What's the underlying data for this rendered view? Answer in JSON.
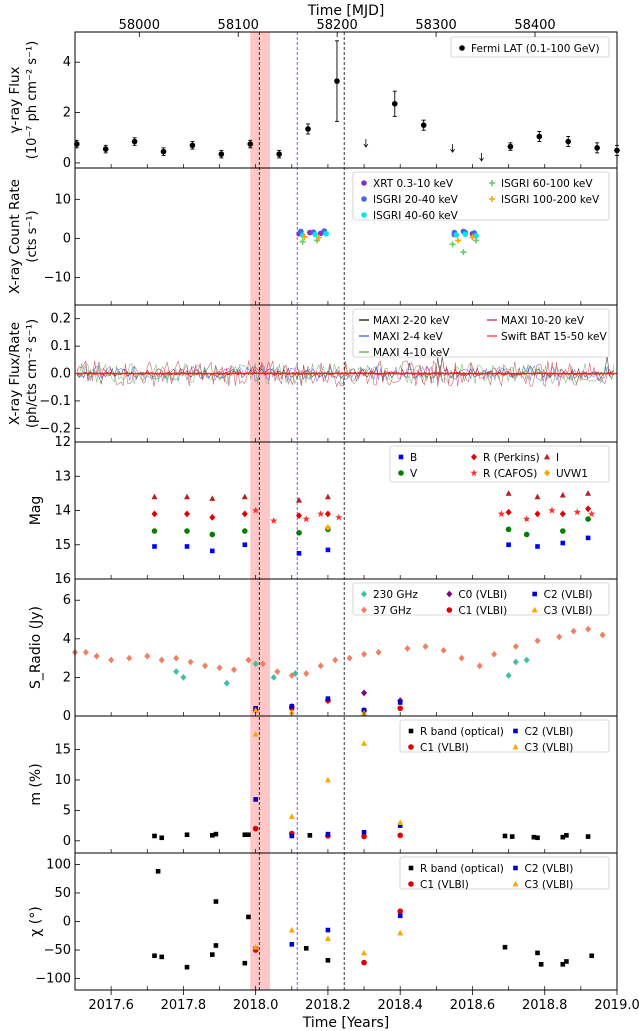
{
  "figure": {
    "top_axis_label": "Time [MJD]",
    "top_ticks": [
      "58000",
      "58100",
      "58200",
      "58300",
      "58400"
    ],
    "bottom_axis_label": "Time [Years]",
    "bottom_ticks": [
      "2017.6",
      "2017.8",
      "2018.0",
      "2018.2",
      "2018.4",
      "2018.6",
      "2018.8",
      "2019.0"
    ],
    "xlim": [
      2017.5,
      2019.0
    ]
  },
  "chart_data": [
    {
      "type": "scatter",
      "title": "gamma-ray flux",
      "ylabel_line1": "γ-ray Flux",
      "ylabel_line2": "(10⁻⁷ ph cm⁻² s⁻¹)",
      "ylim": [
        -0.2,
        5.2
      ],
      "yticks": [
        "0",
        "2",
        "4"
      ],
      "legend": [
        "Fermi LAT (0.1-100 GeV)"
      ],
      "series": [
        {
          "name": "Fermi LAT (0.1-100 GeV)",
          "color": "#000000",
          "x": [
            2017.505,
            2017.585,
            2017.665,
            2017.745,
            2017.825,
            2017.905,
            2017.985,
            2018.065,
            2018.145,
            2018.225,
            2018.385,
            2018.465,
            2018.705,
            2018.785,
            2018.865,
            2018.945,
            2019.0
          ],
          "y": [
            0.75,
            0.55,
            0.85,
            0.45,
            0.7,
            0.35,
            0.75,
            0.35,
            1.35,
            3.25,
            2.35,
            1.5,
            0.65,
            1.05,
            0.85,
            0.6,
            0.5
          ],
          "err": [
            0.15,
            0.15,
            0.15,
            0.15,
            0.15,
            0.15,
            0.15,
            0.15,
            0.2,
            1.6,
            0.5,
            0.2,
            0.15,
            0.2,
            0.2,
            0.2,
            0.2
          ]
        },
        {
          "name": "upper limits",
          "color": "#000000",
          "x": [
            2018.305,
            2018.545,
            2018.625
          ],
          "y": [
            0.75,
            0.55,
            0.2
          ]
        }
      ]
    },
    {
      "type": "scatter",
      "title": "X-ray count rate",
      "ylabel_line1": "X-ray Count Rate",
      "ylabel_line2": "(cts s⁻¹)",
      "ylim": [
        -17,
        18
      ],
      "yticks": [
        "−10",
        "0",
        "10"
      ],
      "legend": [
        "XRT 0.3-10 keV",
        "ISGRI 20-40 keV",
        "ISGRI 40-60 keV",
        "ISGRI 60-100 keV",
        "ISGRI 100-200 keV"
      ],
      "series": [
        {
          "name": "XRT 0.3-10 keV",
          "color": "#8b2fc9",
          "x": [
            2018.12,
            2018.15,
            2018.18,
            2018.55,
            2018.58,
            2018.6
          ],
          "y": [
            1.2,
            1.5,
            1.3,
            1.0,
            1.5,
            1.2
          ]
        },
        {
          "name": "ISGRI 20-40 keV",
          "color": "#4169e1",
          "x": [
            2018.125,
            2018.16,
            2018.19,
            2018.55,
            2018.575,
            2018.605
          ],
          "y": [
            1.8,
            1.6,
            1.9,
            1.5,
            1.8,
            1.4
          ]
        },
        {
          "name": "ISGRI 40-60 keV",
          "color": "#00e5ff",
          "x": [
            2018.13,
            2018.165,
            2018.195,
            2018.555,
            2018.58,
            2018.61
          ],
          "y": [
            0.8,
            1.0,
            1.2,
            0.9,
            1.1,
            0.7
          ]
        },
        {
          "name": "ISGRI 60-100 keV",
          "color": "#66cc66",
          "x": [
            2018.13,
            2018.17,
            2018.545,
            2018.575,
            2018.61
          ],
          "y": [
            -0.8,
            -0.5,
            -1.5,
            -3.5,
            -0.5
          ]
        },
        {
          "name": "ISGRI 100-200 keV",
          "color": "#ffa500",
          "x": [
            2018.135,
            2018.175,
            2018.56,
            2018.6
          ],
          "y": [
            0.4,
            0.2,
            -0.5,
            0.3
          ]
        }
      ]
    },
    {
      "type": "line",
      "title": "X-ray flux/rate",
      "ylabel_line1": "X-ray Flux/Rate",
      "ylabel_line2": "(ph/cts cm⁻² s⁻¹)",
      "ylim": [
        -0.25,
        0.25
      ],
      "yticks": [
        "−0.2",
        "−0.1",
        "0.0",
        "0.1",
        "0.2"
      ],
      "legend": [
        "MAXI 2-20 keV",
        "MAXI 2-4 keV",
        "MAXI 4-10 keV",
        "MAXI 10-20 keV",
        "Swift BAT 15-50 keV"
      ],
      "series": [
        {
          "name": "MAXI 2-20 keV",
          "color": "#000000"
        },
        {
          "name": "MAXI 2-4 keV",
          "color": "#3050ff"
        },
        {
          "name": "MAXI 4-10 keV",
          "color": "#44aa44"
        },
        {
          "name": "MAXI 10-20 keV",
          "color": "#c0203a"
        },
        {
          "name": "Swift BAT 15-50 keV",
          "color": "#ff2020"
        }
      ]
    },
    {
      "type": "scatter",
      "title": "optical magnitudes",
      "ylabel_line1": "Mag",
      "ylabel_line2": "",
      "ylim": [
        16,
        12
      ],
      "yticks": [
        "12",
        "13",
        "14",
        "15",
        "16"
      ],
      "legend": [
        "B",
        "V",
        "R (Perkins)",
        "R (CAFOS)",
        "I",
        "UVW1"
      ],
      "series": [
        {
          "name": "B",
          "color": "#0000ff",
          "x": [
            2017.72,
            2017.81,
            2017.88,
            2017.97,
            2018.12,
            2018.2,
            2018.7,
            2018.78,
            2018.85,
            2018.92
          ],
          "y": [
            15.05,
            15.05,
            15.18,
            15.0,
            15.25,
            15.15,
            15.0,
            15.05,
            14.95,
            14.8
          ]
        },
        {
          "name": "V",
          "color": "#008000",
          "x": [
            2017.72,
            2017.81,
            2017.88,
            2017.97,
            2018.12,
            2018.2,
            2018.7,
            2018.75,
            2018.85,
            2018.92
          ],
          "y": [
            14.6,
            14.6,
            14.7,
            14.6,
            14.65,
            14.55,
            14.55,
            14.7,
            14.6,
            14.25
          ]
        },
        {
          "name": "R (Perkins)",
          "color": "#e00000",
          "x": [
            2017.72,
            2017.81,
            2017.88,
            2017.97,
            2018.12,
            2018.2,
            2018.7,
            2018.78,
            2018.85,
            2018.92
          ],
          "y": [
            14.1,
            14.1,
            14.2,
            14.1,
            14.15,
            14.1,
            14.05,
            14.1,
            14.1,
            13.95
          ]
        },
        {
          "name": "R (CAFOS)",
          "color": "#ff3030",
          "x": [
            2018.0,
            2018.05,
            2018.14,
            2018.18,
            2018.23,
            2018.68,
            2018.75,
            2018.82,
            2018.89,
            2018.93
          ],
          "y": [
            14.0,
            14.3,
            14.25,
            14.1,
            14.2,
            14.1,
            14.25,
            14.0,
            14.05,
            14.1
          ]
        },
        {
          "name": "I",
          "color": "#b22222",
          "x": [
            2017.72,
            2017.81,
            2017.88,
            2017.97,
            2018.12,
            2018.2,
            2018.7,
            2018.78,
            2018.85,
            2018.92
          ],
          "y": [
            13.6,
            13.6,
            13.65,
            13.6,
            13.7,
            13.6,
            13.5,
            13.6,
            13.55,
            13.5
          ]
        },
        {
          "name": "UVW1",
          "color": "#ffa500",
          "x": [
            2018.2
          ],
          "y": [
            14.5
          ]
        }
      ]
    },
    {
      "type": "scatter",
      "title": "radio flux density",
      "ylabel_line1": "S_Radio (Jy)",
      "ylabel_line2": "",
      "ylim": [
        0,
        7.1
      ],
      "yticks": [
        "0",
        "2",
        "4",
        "6"
      ],
      "legend": [
        "230 GHz",
        "37 GHz",
        "C0 (VLBI)",
        "C1 (VLBI)",
        "C2 (VLBI)",
        "C3 (VLBI)"
      ],
      "series": [
        {
          "name": "230 GHz",
          "color": "#40c0a0",
          "x": [
            2017.78,
            2017.8,
            2017.92,
            2018.0,
            2018.05,
            2018.11,
            2018.7,
            2018.72,
            2018.75
          ],
          "y": [
            2.3,
            2.0,
            1.7,
            2.7,
            2.0,
            2.2,
            2.1,
            2.8,
            2.9
          ]
        },
        {
          "name": "37 GHz",
          "color": "#f08060",
          "x": [
            2017.5,
            2017.53,
            2017.56,
            2017.6,
            2017.65,
            2017.7,
            2017.74,
            2017.78,
            2017.82,
            2017.86,
            2017.9,
            2017.94,
            2017.98,
            2018.02,
            2018.06,
            2018.1,
            2018.14,
            2018.18,
            2018.22,
            2018.26,
            2018.3,
            2018.34,
            2018.42,
            2018.47,
            2018.52,
            2018.57,
            2018.62,
            2018.66,
            2018.72,
            2018.78,
            2018.84,
            2018.88,
            2018.92,
            2018.96
          ],
          "y": [
            3.3,
            3.3,
            3.1,
            2.9,
            3.0,
            3.1,
            2.9,
            3.0,
            2.8,
            2.6,
            2.5,
            2.4,
            2.9,
            2.7,
            2.3,
            2.1,
            2.2,
            2.6,
            2.9,
            3.0,
            3.2,
            3.3,
            3.5,
            3.6,
            3.4,
            3.0,
            2.6,
            3.2,
            3.6,
            3.9,
            4.1,
            4.4,
            4.5,
            4.2
          ]
        },
        {
          "name": "C0 (VLBI)",
          "color": "#800080",
          "x": [
            2018.1,
            2018.2,
            2018.3,
            2018.4
          ],
          "y": [
            0.5,
            0.8,
            1.2,
            0.8
          ]
        },
        {
          "name": "C1 (VLBI)",
          "color": "#e00000",
          "x": [
            2018.0,
            2018.1,
            2018.2,
            2018.3,
            2018.4
          ],
          "y": [
            0.3,
            0.4,
            0.8,
            0.3,
            0.4
          ]
        },
        {
          "name": "C2 (VLBI)",
          "color": "#0000cc",
          "x": [
            2018.0,
            2018.1,
            2018.2,
            2018.3,
            2018.4
          ],
          "y": [
            0.4,
            0.5,
            0.9,
            0.3,
            0.7
          ]
        },
        {
          "name": "C3 (VLBI)",
          "color": "#ffa500",
          "x": [
            2018.0,
            2018.1,
            2018.3
          ],
          "y": [
            0.3,
            0.2,
            0.15
          ]
        }
      ]
    },
    {
      "type": "scatter",
      "title": "fractional polarization",
      "ylabel_line1": "m (%)",
      "ylabel_line2": "",
      "ylim": [
        -2,
        20.5
      ],
      "yticks": [
        "0",
        "5",
        "10",
        "15"
      ],
      "legend": [
        "R band (optical)",
        "C1 (VLBI)",
        "C2 (VLBI)",
        "C3 (VLBI)"
      ],
      "series": [
        {
          "name": "R band (optical)",
          "color": "#000000",
          "x": [
            2017.72,
            2017.74,
            2017.81,
            2017.88,
            2017.89,
            2017.97,
            2017.98,
            2018.1,
            2018.15,
            2018.69,
            2018.71,
            2018.77,
            2018.78,
            2018.85,
            2018.86,
            2018.92
          ],
          "y": [
            0.8,
            0.5,
            1.0,
            0.9,
            1.1,
            1.0,
            1.0,
            1.0,
            0.9,
            0.8,
            0.7,
            0.6,
            0.5,
            0.6,
            0.9,
            0.7
          ]
        },
        {
          "name": "C1 (VLBI)",
          "color": "#e00000",
          "x": [
            2018.0,
            2018.1,
            2018.2,
            2018.3,
            2018.4
          ],
          "y": [
            2.0,
            1.2,
            0.8,
            0.7,
            0.9
          ]
        },
        {
          "name": "C2 (VLBI)",
          "color": "#0000cc",
          "x": [
            2018.0,
            2018.1,
            2018.2,
            2018.3,
            2018.4
          ],
          "y": [
            6.8,
            0.8,
            1.1,
            1.4,
            2.5
          ]
        },
        {
          "name": "C3 (VLBI)",
          "color": "#ffa500",
          "x": [
            2018.0,
            2018.1,
            2018.2,
            2018.3,
            2018.4
          ],
          "y": [
            17.5,
            4.0,
            10.0,
            16.0,
            3.0
          ]
        }
      ]
    },
    {
      "type": "scatter",
      "title": "polarization angle",
      "ylabel_line1": "χ (°)",
      "ylabel_line2": "",
      "ylim": [
        -120,
        120
      ],
      "yticks": [
        "−100",
        "−50",
        "0",
        "50",
        "100"
      ],
      "legend": [
        "R band (optical)",
        "C1 (VLBI)",
        "C2 (VLBI)",
        "C3 (VLBI)"
      ],
      "series": [
        {
          "name": "R band (optical)",
          "color": "#000000",
          "x": [
            2017.72,
            2017.73,
            2017.74,
            2017.81,
            2017.88,
            2017.89,
            2017.89,
            2017.97,
            2017.98,
            2018.0,
            2018.14,
            2018.2,
            2018.69,
            2018.78,
            2018.79,
            2018.85,
            2018.86,
            2018.93
          ],
          "y": [
            -60,
            88,
            -62,
            -80,
            -58,
            -42,
            35,
            -73,
            8,
            -48,
            -47,
            -68,
            -45,
            -55,
            -75,
            -75,
            -70,
            -60
          ]
        },
        {
          "name": "C1 (VLBI)",
          "color": "#e00000",
          "x": [
            2018.0,
            2018.3,
            2018.4
          ],
          "y": [
            -50,
            -72,
            18
          ]
        },
        {
          "name": "C2 (VLBI)",
          "color": "#0000cc",
          "x": [
            2018.1,
            2018.2,
            2018.4
          ],
          "y": [
            -40,
            -15,
            10
          ]
        },
        {
          "name": "C3 (VLBI)",
          "color": "#ffa500",
          "x": [
            2018.0,
            2018.1,
            2018.2,
            2018.3,
            2018.4
          ],
          "y": [
            -45,
            -15,
            -30,
            -55,
            -20
          ]
        }
      ]
    }
  ]
}
